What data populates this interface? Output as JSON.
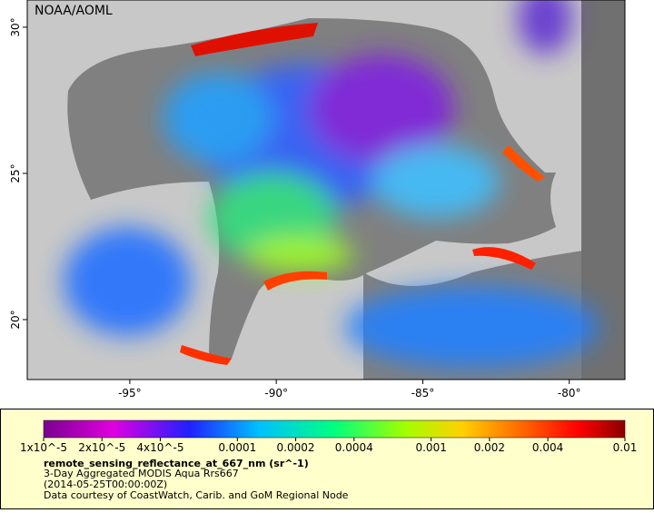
{
  "map": {
    "watermark": "NOAA/AOML",
    "xlim": [
      -98.5,
      -78.1
    ],
    "ylim": [
      17.95,
      30.93
    ],
    "xticks": [
      {
        "value": -95,
        "label": "-95°"
      },
      {
        "value": -90,
        "label": "-90°"
      },
      {
        "value": -85,
        "label": "-85°"
      },
      {
        "value": -80,
        "label": "-80°"
      }
    ],
    "yticks": [
      {
        "value": 30,
        "label": "30°"
      },
      {
        "value": 25,
        "label": "25°"
      },
      {
        "value": 20,
        "label": "20°"
      }
    ]
  },
  "colorbar": {
    "scale": "log",
    "range": [
      1e-05,
      0.01
    ],
    "ticks": [
      {
        "value": 1e-05,
        "label": "1x10^-5"
      },
      {
        "value": 2e-05,
        "label": "2x10^-5"
      },
      {
        "value": 4e-05,
        "label": "4x10^-5"
      },
      {
        "value": 0.0001,
        "label": "0.0001"
      },
      {
        "value": 0.0002,
        "label": "0.0002"
      },
      {
        "value": 0.0004,
        "label": "0.0004"
      },
      {
        "value": 0.001,
        "label": "0.001"
      },
      {
        "value": 0.002,
        "label": "0.002"
      },
      {
        "value": 0.004,
        "label": "0.004"
      },
      {
        "value": 0.01,
        "label": "0.01"
      }
    ]
  },
  "legend": {
    "variable": "remote_sensing_reflectance_at_667_nm (sr^-1)",
    "description": "3-Day Aggregated MODIS Aqua Rrs667",
    "time": "(2014-05-25T00:00:00Z)",
    "credit": "Data courtesy of CoastWatch, Carib. and GoM Regional Node"
  }
}
